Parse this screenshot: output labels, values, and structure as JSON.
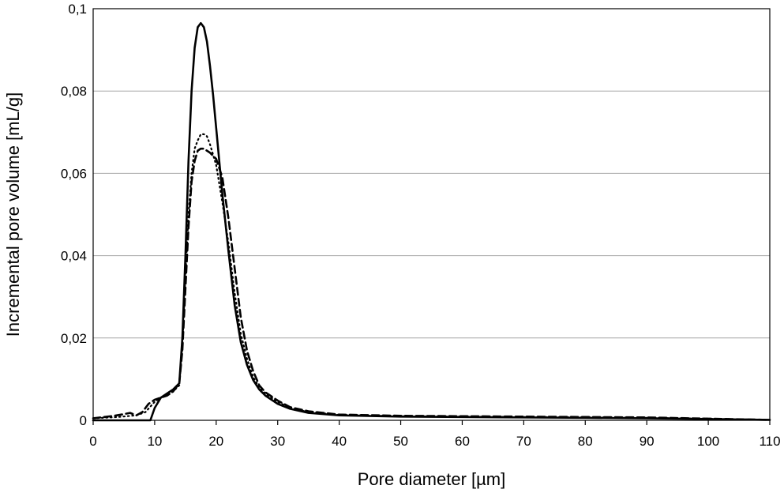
{
  "chart_data": {
    "type": "line",
    "xlabel": "Pore diameter [µm]",
    "ylabel": "Incremental pore volume  [mL/g]",
    "xlim": [
      0,
      110
    ],
    "ylim": [
      0,
      0.1
    ],
    "x_ticks": [
      "0",
      "10",
      "20",
      "30",
      "40",
      "50",
      "60",
      "70",
      "80",
      "90",
      "100",
      "110"
    ],
    "y_ticks": [
      "0",
      "0,02",
      "0,04",
      "0,06",
      "0,08",
      "0,1"
    ],
    "grid": "horizontal",
    "legend": "none",
    "series": [
      {
        "style": "solid",
        "x": [
          0,
          9.3,
          10,
          11,
          12,
          13,
          14,
          14.5,
          15,
          15.5,
          16,
          16.5,
          17,
          17.5,
          18,
          18.5,
          19,
          19.5,
          20,
          21,
          22,
          23,
          24,
          25,
          26,
          27,
          28,
          30,
          32,
          35,
          40,
          50,
          60,
          70,
          80,
          90,
          100,
          110
        ],
        "y": [
          0,
          0,
          0.003,
          0.0055,
          0.0065,
          0.0075,
          0.009,
          0.02,
          0.04,
          0.063,
          0.08,
          0.0905,
          0.0955,
          0.0965,
          0.0955,
          0.092,
          0.086,
          0.079,
          0.071,
          0.055,
          0.041,
          0.028,
          0.019,
          0.0135,
          0.0098,
          0.0075,
          0.006,
          0.004,
          0.0028,
          0.0018,
          0.0012,
          0.0009,
          0.0008,
          0.0007,
          0.0006,
          0.0005,
          0.0003,
          0.0001
        ]
      },
      {
        "style": "dotted",
        "x": [
          0,
          4,
          7,
          8.5,
          10,
          11,
          12,
          13,
          14,
          14.5,
          15,
          15.5,
          16,
          16.5,
          17,
          17.5,
          18,
          18.5,
          19,
          20,
          21,
          22,
          23,
          24,
          25,
          26,
          27,
          28,
          30,
          32,
          35,
          40,
          50,
          60,
          70,
          80,
          90,
          100,
          110
        ],
        "y": [
          0.0005,
          0.0008,
          0.0012,
          0.002,
          0.0045,
          0.0055,
          0.006,
          0.007,
          0.0085,
          0.018,
          0.035,
          0.05,
          0.06,
          0.066,
          0.068,
          0.0695,
          0.0695,
          0.069,
          0.067,
          0.062,
          0.053,
          0.043,
          0.031,
          0.021,
          0.015,
          0.0105,
          0.008,
          0.0065,
          0.0045,
          0.003,
          0.002,
          0.0013,
          0.001,
          0.0009,
          0.0008,
          0.0007,
          0.0006,
          0.0004,
          0.0001
        ]
      },
      {
        "style": "dashed",
        "x": [
          0,
          3,
          5,
          6,
          7,
          8,
          9,
          10,
          11,
          12,
          13,
          14,
          14.5,
          15,
          15.5,
          16,
          16.5,
          17,
          17.5,
          18,
          18.5,
          19,
          20,
          21,
          22,
          23,
          24,
          25,
          26,
          27,
          28,
          30,
          32,
          35,
          40,
          50,
          60,
          70,
          80,
          90,
          100,
          110
        ],
        "y": [
          0.0005,
          0.001,
          0.0015,
          0.0018,
          0.0012,
          0.002,
          0.004,
          0.005,
          0.0055,
          0.006,
          0.007,
          0.009,
          0.017,
          0.032,
          0.047,
          0.058,
          0.063,
          0.0655,
          0.066,
          0.066,
          0.0655,
          0.065,
          0.0635,
          0.059,
          0.049,
          0.037,
          0.025,
          0.017,
          0.012,
          0.0085,
          0.0068,
          0.0048,
          0.0032,
          0.0022,
          0.0014,
          0.0011,
          0.001,
          0.0009,
          0.0008,
          0.0007,
          0.0004,
          0.0001
        ]
      }
    ]
  }
}
